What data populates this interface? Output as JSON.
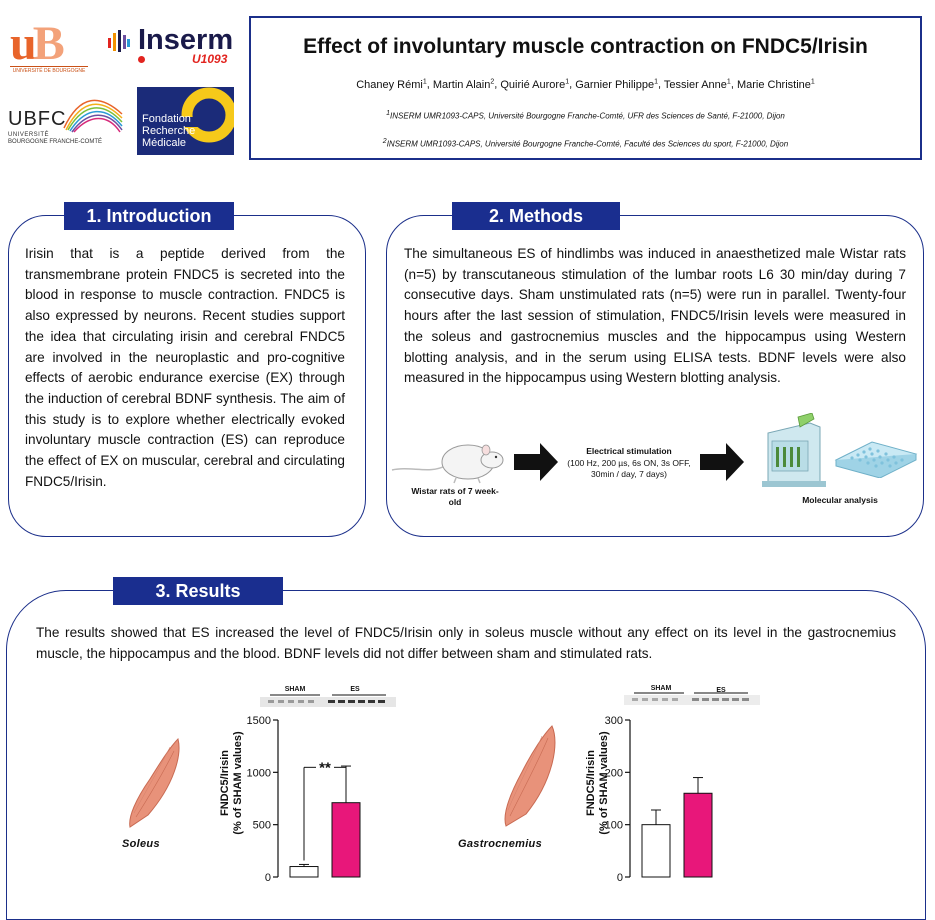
{
  "logos": {
    "ub": {
      "mark": "uB",
      "subtitle": "UNIVERSITÉ DE BOURGOGNE"
    },
    "inserm": {
      "name": "Inserm",
      "unit": "U1093"
    },
    "ubfc": {
      "name": "UBFC",
      "line1": "UNIVERSITÉ",
      "line2": "BOURGOGNE FRANCHE-COMTÉ"
    },
    "frm": {
      "line1": "Fondation",
      "line2": "Recherche",
      "line3": "Médicale"
    }
  },
  "header": {
    "title": "Effect of involuntary muscle contraction on FNDC5/Irisin",
    "authors": [
      {
        "name": "Chaney Rémi",
        "aff": "1"
      },
      {
        "name": "Martin Alain",
        "aff": "2"
      },
      {
        "name": "Quirié Aurore",
        "aff": "1"
      },
      {
        "name": "Garnier Philippe",
        "aff": "1"
      },
      {
        "name": "Tessier Anne",
        "aff": "1"
      },
      {
        "name": "Marie Christine",
        "aff": "1"
      }
    ],
    "affiliation1_num": "1",
    "affiliation1": "INSERM UMR1093-CAPS, Université Bourgogne Franche-Comté, UFR des Sciences de Santé, F-21000, Dijon",
    "affiliation2_num": "2",
    "affiliation2": "INSERM UMR1093-CAPS, Université Bourgogne Franche-Comté, Faculté des Sciences du sport, F-21000, Dijon"
  },
  "introduction": {
    "heading": "1. Introduction",
    "text": "Irisin that is a peptide derived from the transmembrane protein FNDC5 is secreted into the blood in response to muscle contraction. FNDC5 is also expressed by neurons. Recent studies support the idea that circulating irisin and cerebral FNDC5 are involved in the neuroplastic and pro-cognitive effects of aerobic endurance exercise (EX) through the induction of cerebral BDNF synthesis. The aim of this study is to explore whether electrically evoked involuntary muscle contraction (ES) can reproduce the effect of EX on muscular, cerebral and circulating FNDC5/Irisin."
  },
  "methods": {
    "heading": "2. Methods",
    "text": "The simultaneous ES of hindlimbs was induced in anaesthetized male Wistar rats (n=5) by transcutaneous stimulation of the lumbar roots L6 30 min/day during 7 consecutive days. Sham unstimulated rats (n=5) were run in parallel. Twenty-four hours after the last session of stimulation, FNDC5/Irisin levels were measured in the soleus and gastrocnemius muscles and the hippocampus using Western blotting analysis, and in the serum using ELISA tests. BDNF levels were also measured in the hippocampus using Western blotting analysis.",
    "diagram": {
      "rat_caption": "Wistar rats of 7 week-old",
      "stim_title": "Electrical stimulation",
      "stim_detail": "(100 Hz, 200 µs, 6s ON, 3s OFF, 30min / day, 7 days)",
      "molecular_caption": "Molecular analysis"
    }
  },
  "results": {
    "heading": "3. Results",
    "text": "The results showed that ES increased the level of FNDC5/Irisin only in soleus muscle without any effect on its level in the gastrocnemius muscle, the hippocampus and the blood. BDNF levels did not differ between sham and stimulated rats."
  },
  "colors": {
    "navy": "#1a2e8f",
    "stimulated_bar": "#e8177a",
    "sham_bar": "#ffffff"
  },
  "chart_data": [
    {
      "type": "bar",
      "muscle_label": "Soleus",
      "blot_labels": [
        "SHAM",
        "ES"
      ],
      "categories": [
        "SHAM",
        "ES"
      ],
      "values": [
        100,
        710
      ],
      "error": [
        20,
        350
      ],
      "ylabel": "FNDC5/Irisin\n(% of SHAM values)",
      "ylim": [
        0,
        1500
      ],
      "yticks": [
        0,
        500,
        1000,
        1500
      ],
      "significance": "**"
    },
    {
      "type": "bar",
      "muscle_label": "Gastrocnemius",
      "blot_labels": [
        "SHAM",
        "ES"
      ],
      "categories": [
        "SHAM",
        "ES"
      ],
      "values": [
        100,
        160
      ],
      "error": [
        28,
        30
      ],
      "ylabel": "FNDC5/Irisin\n(% of SHAM values)",
      "ylim": [
        0,
        300
      ],
      "yticks": [
        0,
        100,
        200,
        300
      ]
    }
  ]
}
